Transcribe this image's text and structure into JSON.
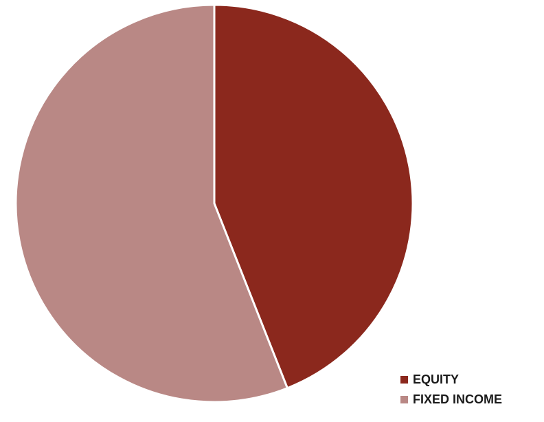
{
  "chart_data": {
    "type": "pie",
    "categories": [
      "EQUITY",
      "FIXED INCOME"
    ],
    "values": [
      44,
      56
    ],
    "colors": [
      "#8B281D",
      "#B98885"
    ],
    "title": "",
    "legend_position": "bottom-right"
  },
  "legend": {
    "items": [
      {
        "label": "EQUITY",
        "color": "#8B281D"
      },
      {
        "label": "FIXED INCOME",
        "color": "#B98885"
      }
    ]
  }
}
